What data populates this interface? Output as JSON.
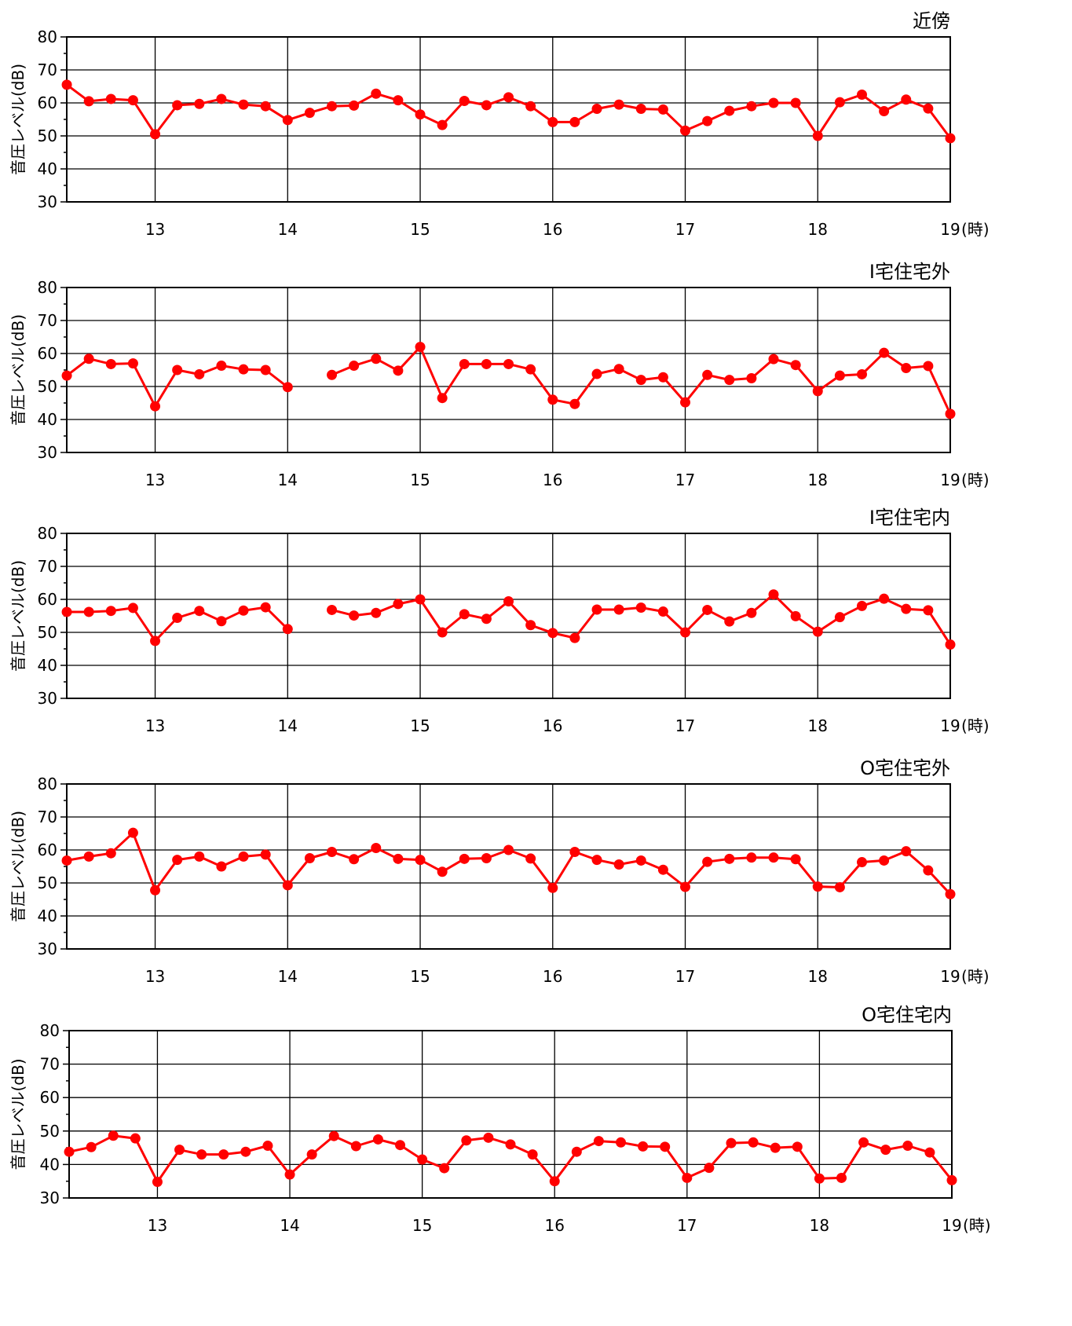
{
  "chart_data": [
    {
      "type": "line",
      "title": "近傍",
      "ylabel": "音圧レベル(dB)",
      "xlabel": "",
      "x_unit": "(時)",
      "x_ticks": [
        "13",
        "14",
        "15",
        "16",
        "17",
        "18",
        "19"
      ],
      "xlim": [
        12.333,
        19
      ],
      "ylim": [
        30,
        80
      ],
      "y_ticks": [
        30,
        40,
        50,
        60,
        70,
        80
      ],
      "grid": true,
      "color": "#ff0000",
      "x_step_minutes": 10,
      "x_start": "12:20",
      "values": [
        65.5,
        60.5,
        61.2,
        60.8,
        50.5,
        59.3,
        59.7,
        61.2,
        59.5,
        59.0,
        54.8,
        57.0,
        59.0,
        59.2,
        62.8,
        60.8,
        56.5,
        53.3,
        60.6,
        59.3,
        61.7,
        59.0,
        54.2,
        54.2,
        58.2,
        59.5,
        58.2,
        58.0,
        51.6,
        54.5,
        57.6,
        59.0,
        60.0,
        60.0,
        50.0,
        60.2,
        62.5,
        57.5,
        61.0,
        58.3,
        49.3
      ]
    },
    {
      "type": "line",
      "title": "Ⅰ宅住宅外",
      "ylabel": "音圧レベル(dB)",
      "xlabel": "",
      "x_unit": "(時)",
      "x_ticks": [
        "13",
        "14",
        "15",
        "16",
        "17",
        "18",
        "19"
      ],
      "xlim": [
        12.333,
        19
      ],
      "ylim": [
        30,
        80
      ],
      "y_ticks": [
        30,
        40,
        50,
        60,
        70,
        80
      ],
      "grid": true,
      "color": "#ff0000",
      "x_step_minutes": 10,
      "x_start": "12:20",
      "values": [
        53.3,
        58.4,
        56.8,
        57.0,
        44.0,
        55.0,
        53.7,
        56.3,
        55.2,
        55.0,
        49.8,
        null,
        53.5,
        56.3,
        58.4,
        54.8,
        62.0,
        46.5,
        56.8,
        56.8,
        56.8,
        55.2,
        46.0,
        44.7,
        53.8,
        55.3,
        52.0,
        52.8,
        45.2,
        53.5,
        52.0,
        52.5,
        58.3,
        56.5,
        48.6,
        53.3,
        53.7,
        60.2,
        55.6,
        56.2,
        41.7
      ]
    },
    {
      "type": "line",
      "title": "Ⅰ宅住宅内",
      "ylabel": "音圧レベル(dB)",
      "xlabel": "",
      "x_unit": "(時)",
      "x_ticks": [
        "13",
        "14",
        "15",
        "16",
        "17",
        "18",
        "19"
      ],
      "xlim": [
        12.333,
        19
      ],
      "ylim": [
        30,
        80
      ],
      "y_ticks": [
        30,
        40,
        50,
        60,
        70,
        80
      ],
      "grid": true,
      "color": "#ff0000",
      "x_step_minutes": 10,
      "x_start": "12:20",
      "values": [
        56.2,
        56.2,
        56.5,
        57.4,
        47.4,
        54.4,
        56.5,
        53.4,
        56.6,
        57.6,
        51.0,
        null,
        56.8,
        55.1,
        55.9,
        58.6,
        60.0,
        50.0,
        55.5,
        54.1,
        59.4,
        52.2,
        49.8,
        48.3,
        56.9,
        56.9,
        57.5,
        56.3,
        50.0,
        56.8,
        53.3,
        55.9,
        61.5,
        54.9,
        50.2,
        54.6,
        58.0,
        60.2,
        57.1,
        56.7,
        46.3
      ]
    },
    {
      "type": "line",
      "title": "O宅住宅外",
      "ylabel": "音圧レベル(dB)",
      "xlabel": "",
      "x_unit": "(時)",
      "x_ticks": [
        "13",
        "14",
        "15",
        "16",
        "17",
        "18",
        "19"
      ],
      "xlim": [
        12.333,
        19
      ],
      "ylim": [
        30,
        80
      ],
      "y_ticks": [
        30,
        40,
        50,
        60,
        70,
        80
      ],
      "grid": true,
      "color": "#ff0000",
      "x_step_minutes": 10,
      "x_start": "12:20",
      "values": [
        56.8,
        58.0,
        59.0,
        65.2,
        47.8,
        57.0,
        58.0,
        55.0,
        58.0,
        58.6,
        49.3,
        57.5,
        59.4,
        57.2,
        60.6,
        57.3,
        57.0,
        53.4,
        57.3,
        57.5,
        60.0,
        57.4,
        48.5,
        59.4,
        57.0,
        55.6,
        56.8,
        54.0,
        48.8,
        56.4,
        57.3,
        57.7,
        57.7,
        57.2,
        48.9,
        48.7,
        56.3,
        56.8,
        59.6,
        53.8,
        46.6
      ]
    },
    {
      "type": "line",
      "title": "O宅住宅内",
      "ylabel": "音圧レベル(dB)",
      "xlabel": "",
      "x_unit": "(時)",
      "x_ticks": [
        "13",
        "14",
        "15",
        "16",
        "17",
        "18",
        "19"
      ],
      "xlim": [
        12.333,
        19
      ],
      "ylim": [
        30,
        80
      ],
      "y_ticks": [
        30,
        40,
        50,
        60,
        70,
        80
      ],
      "grid": true,
      "color": "#ff0000",
      "x_step_minutes": 10,
      "x_start": "12:20",
      "values": [
        43.8,
        45.2,
        48.6,
        47.8,
        34.8,
        44.4,
        43.0,
        43.0,
        43.8,
        45.6,
        37.0,
        43.0,
        48.5,
        45.5,
        47.5,
        45.8,
        41.5,
        38.9,
        47.2,
        48.0,
        46.0,
        43.0,
        35.0,
        43.8,
        47.0,
        46.6,
        45.4,
        45.3,
        36.0,
        39.0,
        46.4,
        46.6,
        45.0,
        45.3,
        35.8,
        36.0,
        46.6,
        44.4,
        45.6,
        43.6,
        35.3
      ]
    }
  ]
}
